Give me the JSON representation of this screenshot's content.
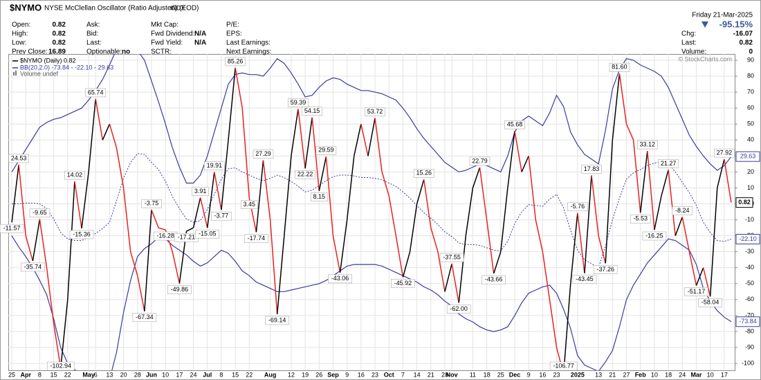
{
  "header": {
    "symbol": "$NYMO",
    "name": "NYSE McClellan Oscillator (Ratio Adjusted) (EOD)",
    "exchange": "INDX",
    "date": "Friday 21-Mar-2025",
    "change_pct": "-95.15%",
    "columns": [
      [
        {
          "label": "Open:",
          "value": 0.82
        },
        {
          "label": "High:",
          "value": 0.82
        },
        {
          "label": "Low:",
          "value": 0.82
        },
        {
          "label": "Prev Close:",
          "value": 16.89
        }
      ],
      [
        {
          "label": "Ask:"
        },
        {
          "label": "Bid:"
        },
        {
          "label": "Last:"
        },
        {
          "label": "Optionable:",
          "value": "no"
        }
      ],
      [
        {
          "label": "Mkt Cap:"
        },
        {
          "label": "Fwd Dividend:",
          "value": "N/A"
        },
        {
          "label": "Fwd Yield:",
          "value": "N/A"
        },
        {
          "label": "SCTR:"
        }
      ],
      [
        {
          "label": "P/E:"
        },
        {
          "label": "EPS:"
        },
        {
          "label": "Last Earnings:"
        },
        {
          "label": "Next Earnings:"
        }
      ]
    ],
    "right": [
      {
        "label": "Chg:",
        "value": -16.07
      },
      {
        "label": "Last:",
        "value": 0.82
      },
      {
        "label": "Volume:",
        "value": 0
      }
    ]
  },
  "chart_data": {
    "type": "line",
    "watermark": "© StockCharts.com",
    "grid": true,
    "volume_legend": "Volume undef",
    "ylim": [
      -104.3,
      93.9
    ],
    "yticks": [
      90,
      80,
      70,
      60,
      50,
      40,
      30,
      20,
      10,
      0,
      -10,
      -20,
      -30,
      -40,
      -50,
      -60,
      -70,
      -80,
      -90,
      -100
    ],
    "categories": [
      "25",
      null,
      "Apr",
      null,
      "8",
      null,
      "15",
      null,
      "22",
      null,
      null,
      "May",
      "6",
      null,
      "13",
      null,
      "20",
      null,
      "28",
      null,
      "Jun",
      null,
      "10",
      null,
      "17",
      null,
      "24",
      null,
      "Jul",
      null,
      "8",
      null,
      "15",
      null,
      "22",
      null,
      null,
      "Aug",
      null,
      null,
      "12",
      null,
      "19",
      null,
      "26",
      null,
      "Sep",
      null,
      "9",
      null,
      "16",
      null,
      "23",
      null,
      "Oct",
      null,
      "7",
      null,
      "14",
      null,
      "21",
      null,
      "28",
      "Nov",
      null,
      null,
      "11",
      null,
      "18",
      null,
      "25",
      null,
      "Dec",
      null,
      "9",
      null,
      "16",
      null,
      "23",
      null,
      null,
      "2025",
      null,
      null,
      "13",
      null,
      "21",
      null,
      "27",
      null,
      "Feb",
      null,
      "10",
      null,
      "18",
      null,
      "24",
      null,
      "Mar",
      null,
      "10",
      null,
      "17",
      null
    ],
    "series": [
      {
        "name": "$NYMO (Daily) 0.82",
        "color": "#000000",
        "down_color": "#e8211d",
        "values": [
          -11.57,
          24.53,
          -20,
          -35.74,
          -9.65,
          -40,
          -75,
          -102.94,
          -60,
          14.02,
          -15.36,
          20,
          65.74,
          40,
          50,
          35,
          10,
          -30,
          -45,
          -67.34,
          -3.75,
          -15,
          -16.28,
          -30,
          -49.86,
          -17.21,
          -15,
          3.91,
          -15.05,
          19.91,
          -3.77,
          40,
          85.26,
          60,
          3.45,
          -17.74,
          27.29,
          -10,
          -69.14,
          -20,
          30,
          59.39,
          22.22,
          54.15,
          8.15,
          29.59,
          -20,
          -43.06,
          -10,
          30,
          50,
          30,
          53.72,
          20,
          5,
          -20,
          -45.92,
          -30,
          0,
          15.26,
          -15,
          -30,
          -55,
          -37.55,
          -62,
          -20,
          10,
          22.79,
          -10,
          -43.66,
          -30,
          10,
          45.68,
          20,
          30,
          -10,
          -30,
          -60,
          -90,
          -106.77,
          -50,
          -5.76,
          -43.45,
          17.83,
          -20,
          -37.26,
          40,
          81.6,
          50,
          40,
          -5.53,
          33.12,
          -16.25,
          5,
          21.27,
          -20,
          -8.24,
          -30,
          -51.17,
          -40,
          -58.04,
          10,
          27.92,
          0.82
        ],
        "value_labels": [
          "-11.57",
          "24.53",
          null,
          "-35.74",
          "-9.65",
          null,
          null,
          "-102.94",
          null,
          "14.02",
          "-15.36",
          null,
          "65.74",
          null,
          null,
          null,
          null,
          null,
          null,
          "-67.34",
          "-3.75",
          null,
          "-16.28",
          null,
          "-49.86",
          "-17.21",
          null,
          "3.91",
          "-15.05",
          "19.91",
          "-3.77",
          null,
          "85.26",
          null,
          "3.45",
          "-17.74",
          "27.29",
          null,
          "-69.14",
          null,
          null,
          "59.39",
          "22.22",
          "54.15",
          "8.15",
          "29.59",
          null,
          "-43.06",
          null,
          null,
          null,
          null,
          "53.72",
          null,
          null,
          null,
          "-45.92",
          null,
          null,
          "15.26",
          null,
          null,
          null,
          "-37.55",
          "-62.00",
          null,
          null,
          "22.79",
          null,
          "-43.66",
          null,
          null,
          "45.68",
          null,
          null,
          null,
          null,
          null,
          null,
          "-106.77",
          null,
          "-5.76",
          "-43.45",
          "17.83",
          null,
          "-37.26",
          null,
          "81.60",
          null,
          null,
          "-5.53",
          "33.12",
          "-16.25",
          null,
          "21.27",
          null,
          "-8.24",
          null,
          "-51.17",
          null,
          "-58.04",
          null,
          "27.92",
          null
        ]
      }
    ],
    "bands": {
      "name": "BB(20,2.0) -73.84 - -22.10 - 29.63",
      "color": "#3a3a9c",
      "middle_label": "-22.10",
      "upper": [
        20,
        27,
        34,
        41,
        48,
        51,
        53,
        54,
        56,
        58,
        60,
        65,
        71,
        78,
        87,
        97,
        100,
        100,
        96,
        90,
        77,
        64,
        50,
        35,
        23,
        13,
        13,
        18,
        30,
        45,
        60,
        75,
        81,
        82,
        81,
        81,
        80,
        85,
        91,
        88,
        82,
        75,
        67,
        68,
        73,
        77,
        79,
        78,
        75,
        73,
        71,
        71,
        70,
        69,
        67,
        65,
        60,
        54,
        47,
        41,
        36,
        31,
        26,
        23,
        20,
        21,
        23,
        25,
        24,
        22,
        20,
        30,
        45,
        52,
        55,
        52,
        49,
        57,
        68,
        61,
        45,
        37,
        31,
        28,
        25,
        46,
        72,
        84,
        91,
        90,
        87,
        85,
        83,
        80,
        73,
        63,
        53,
        43,
        36,
        30,
        25,
        21,
        24,
        29.63
      ],
      "middle": [
        0,
        0,
        0.5,
        0.5,
        0,
        -3,
        -9.5,
        -18,
        -22,
        -23,
        -23,
        -21,
        -18.5,
        -15.5,
        -11.5,
        2,
        16,
        26,
        31.5,
        31,
        26,
        21.5,
        14,
        4.5,
        -3,
        -9.5,
        -11.5,
        -10.5,
        -3.5,
        6,
        15.5,
        22,
        22.5,
        20,
        18,
        16,
        14.5,
        16,
        18,
        16.5,
        14,
        11,
        7.5,
        8.5,
        11.5,
        14.5,
        17,
        18,
        18,
        17.5,
        16.5,
        16.5,
        16,
        15,
        13,
        11,
        7.5,
        3.5,
        -1,
        -5.5,
        -9,
        -13,
        -17.5,
        -20.5,
        -24.5,
        -25.5,
        -25.5,
        -26,
        -27.5,
        -29,
        -29.5,
        -23.5,
        -12.5,
        -5,
        -0.5,
        -1,
        -1.5,
        3,
        6,
        -2.5,
        -16.5,
        -29,
        -35,
        -37.5,
        -40,
        -26.5,
        -10,
        3.5,
        15.5,
        19.5,
        21.5,
        24,
        25.5,
        26.5,
        25.5,
        20,
        13.5,
        7,
        -1,
        -11.5,
        -18,
        -23,
        -23.5,
        -22.1
      ],
      "lower": [
        -20,
        -27,
        -33,
        -40,
        -48,
        -57,
        -72,
        -90,
        -100,
        -104,
        -106,
        -107,
        -108,
        -109,
        -110,
        -93,
        -68,
        -48,
        -33,
        -28,
        -25,
        -21,
        -22,
        -26,
        -29,
        -32,
        -36,
        -39,
        -37,
        -33,
        -29,
        -31,
        -36,
        -42,
        -45,
        -49,
        -51,
        -53,
        -55,
        -55,
        -54,
        -53,
        -52,
        -51,
        -50,
        -48,
        -45,
        -42,
        -39,
        -38,
        -38,
        -38,
        -38,
        -39,
        -41,
        -43,
        -45,
        -47,
        -49,
        -52,
        -54,
        -57,
        -61,
        -64,
        -69,
        -72,
        -74,
        -77,
        -79,
        -80,
        -79,
        -77,
        -70,
        -62,
        -56,
        -54,
        -52,
        -51,
        -56,
        -66,
        -78,
        -95,
        -101,
        -103,
        -105,
        -99,
        -92,
        -77,
        -60,
        -51,
        -44,
        -37,
        -32,
        -27,
        -22,
        -23,
        -26,
        -29,
        -38,
        -53,
        -61,
        -67,
        -71,
        -73.84
      ]
    }
  }
}
